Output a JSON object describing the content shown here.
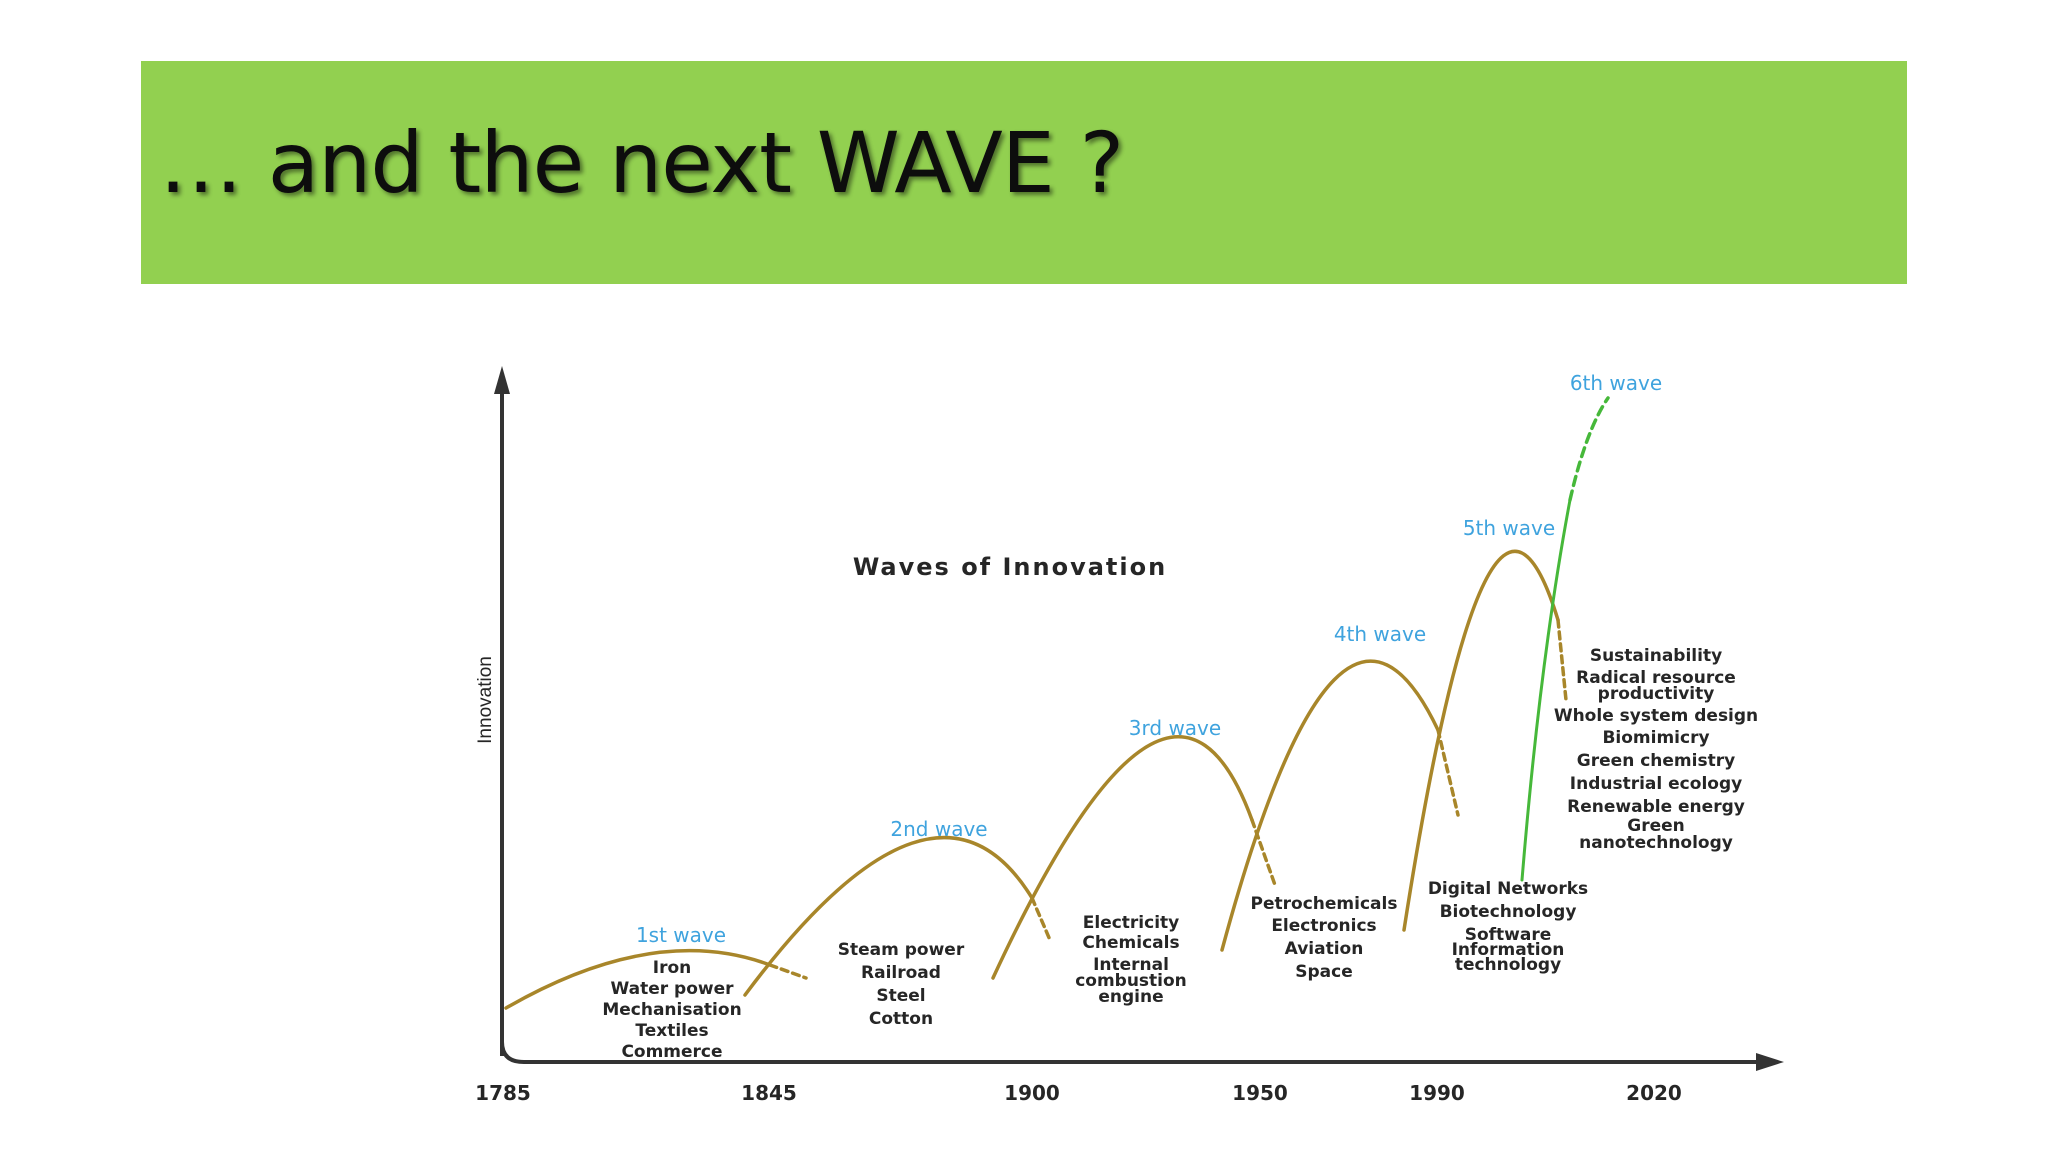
{
  "slide": {
    "title": "… and the next WAVE ?"
  },
  "diagram": {
    "title": "Waves of Innovation",
    "y_axis_label": "Innovation",
    "years": [
      "1785",
      "1845",
      "1900",
      "1950",
      "1990",
      "2020"
    ],
    "waves": [
      {
        "label": "1st wave",
        "technologies": [
          "Iron",
          "Water power",
          "Mechanisation",
          "Textiles",
          "Commerce"
        ]
      },
      {
        "label": "2nd wave",
        "technologies": [
          "Steam power",
          "Railroad",
          "Steel",
          "Cotton"
        ]
      },
      {
        "label": "3rd wave",
        "technologies": [
          "Electricity",
          "Chemicals",
          "Internal",
          "combustion",
          "engine"
        ]
      },
      {
        "label": "4th wave",
        "technologies": [
          "Petrochemicals",
          "Electronics",
          "Aviation",
          "Space"
        ]
      },
      {
        "label": "5th wave",
        "technologies": [
          "Digital Networks",
          "Biotechnology",
          "Software",
          "Information",
          "technology"
        ]
      },
      {
        "label": "6th wave",
        "technologies": [
          "Sustainability",
          "Radical resource",
          "productivity",
          "Whole system design",
          "Biomimicry",
          "Green chemistry",
          "Industrial ecology",
          "Renewable energy",
          "Green",
          "nanotechnology"
        ]
      }
    ],
    "colors": {
      "wave_curve": "#a8862a",
      "next_wave_curve": "#46b83a",
      "wave_label": "#3fa3de",
      "header": "#92d050"
    }
  }
}
